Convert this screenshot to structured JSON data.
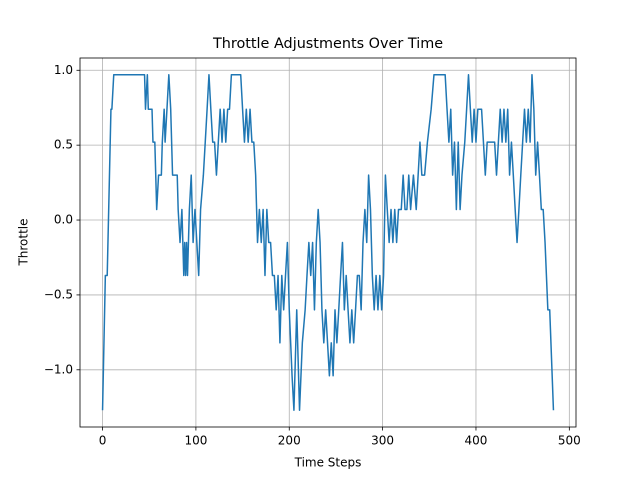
{
  "chart_data": {
    "type": "line",
    "title": "Throttle Adjustments Over Time",
    "xlabel": "Time Steps",
    "ylabel": "Throttle",
    "color": "#1f77b4",
    "grid": true,
    "x": [
      0,
      3,
      5,
      9,
      10,
      12,
      45,
      46,
      48,
      49,
      53,
      54,
      56,
      58,
      60,
      63,
      64,
      66,
      67,
      69,
      71,
      73,
      75,
      80,
      81,
      83,
      85,
      87,
      88,
      89,
      90,
      91,
      93,
      95,
      97,
      99,
      101,
      103,
      105,
      108,
      110,
      112,
      114,
      116,
      118,
      120,
      122,
      124,
      126,
      128,
      130,
      132,
      134,
      136,
      138,
      148,
      150,
      152,
      154,
      156,
      158,
      160,
      162,
      164,
      166,
      168,
      170,
      172,
      174,
      176,
      178,
      180,
      182,
      184,
      186,
      188,
      190,
      192,
      194,
      196,
      198,
      200,
      203,
      205,
      208,
      211,
      214,
      217,
      219,
      221,
      223,
      225,
      227,
      229,
      231,
      233,
      235,
      237,
      239,
      241,
      243,
      245,
      247,
      249,
      251,
      253,
      255,
      257,
      259,
      261,
      263,
      265,
      267,
      269,
      271,
      273,
      275,
      277,
      279,
      281,
      283,
      285,
      287,
      289,
      291,
      293,
      295,
      297,
      299,
      301,
      303,
      305,
      307,
      309,
      311,
      313,
      315,
      317,
      320,
      322,
      324,
      326,
      328,
      330,
      333,
      336,
      340,
      342,
      345,
      348,
      352,
      355,
      367,
      369,
      371,
      373,
      375,
      377,
      379,
      381,
      383,
      385,
      388,
      390,
      392,
      394,
      396,
      398,
      400,
      402,
      406,
      408,
      410,
      412,
      420,
      422,
      424,
      426,
      428,
      430,
      432,
      434,
      436,
      438,
      440,
      442,
      444,
      446,
      448,
      450,
      452,
      454,
      456,
      458,
      460,
      462,
      464,
      466,
      468,
      470,
      472,
      474,
      477,
      479,
      483
    ],
    "values": [
      -1.27,
      -0.37,
      -0.37,
      0.74,
      0.74,
      0.97,
      0.97,
      0.74,
      0.97,
      0.74,
      0.74,
      0.52,
      0.52,
      0.07,
      0.3,
      0.3,
      0.52,
      0.74,
      0.52,
      0.74,
      0.97,
      0.74,
      0.3,
      0.3,
      0.07,
      -0.15,
      0.07,
      -0.37,
      -0.15,
      -0.37,
      -0.15,
      -0.37,
      0.07,
      0.3,
      -0.15,
      0.07,
      -0.15,
      -0.37,
      0.07,
      0.3,
      0.52,
      0.74,
      0.97,
      0.74,
      0.52,
      0.52,
      0.3,
      0.52,
      0.74,
      0.52,
      0.74,
      0.52,
      0.74,
      0.74,
      0.97,
      0.97,
      0.74,
      0.52,
      0.74,
      0.52,
      0.74,
      0.52,
      0.52,
      0.3,
      -0.15,
      0.07,
      -0.15,
      0.07,
      -0.37,
      0.07,
      -0.15,
      -0.15,
      -0.37,
      -0.37,
      -0.6,
      -0.37,
      -0.82,
      -0.37,
      -0.6,
      -0.37,
      -0.15,
      -0.6,
      -1.04,
      -1.27,
      -0.6,
      -1.27,
      -0.82,
      -0.6,
      -0.37,
      -0.15,
      -0.37,
      -0.15,
      -0.6,
      -0.15,
      0.07,
      -0.15,
      -0.6,
      -0.82,
      -0.6,
      -0.82,
      -1.04,
      -0.82,
      -1.04,
      -0.6,
      -0.82,
      -0.6,
      -0.37,
      -0.15,
      -0.6,
      -0.37,
      -0.6,
      -0.82,
      -0.6,
      -0.82,
      -0.6,
      -0.37,
      -0.37,
      -0.6,
      -0.15,
      0.07,
      -0.15,
      0.3,
      0.07,
      -0.37,
      -0.6,
      -0.37,
      -0.6,
      -0.37,
      -0.6,
      -0.37,
      0.3,
      0.07,
      -0.15,
      0.07,
      -0.15,
      0.07,
      -0.15,
      0.07,
      0.07,
      0.3,
      0.07,
      0.07,
      0.3,
      0.07,
      0.3,
      0.07,
      0.52,
      0.3,
      0.3,
      0.52,
      0.74,
      0.97,
      0.97,
      0.74,
      0.52,
      0.74,
      0.3,
      0.52,
      0.07,
      0.52,
      0.07,
      0.3,
      0.52,
      0.74,
      0.97,
      0.74,
      0.52,
      0.74,
      0.52,
      0.74,
      0.74,
      0.52,
      0.3,
      0.52,
      0.52,
      0.3,
      0.52,
      0.74,
      0.52,
      0.74,
      0.52,
      0.74,
      0.3,
      0.52,
      0.3,
      0.07,
      -0.15,
      0.07,
      0.3,
      0.52,
      0.74,
      0.52,
      0.74,
      0.52,
      0.97,
      0.74,
      0.3,
      0.52,
      0.3,
      0.07,
      0.07,
      -0.15,
      -0.6,
      -0.6,
      -1.27
    ],
    "xlim": [
      -24.15,
      507.15
    ],
    "ylim": [
      -1.382,
      1.082
    ],
    "xticks": [
      0,
      100,
      200,
      300,
      400,
      500
    ],
    "yticks": [
      {
        "value": -1.0,
        "label": "−1.0"
      },
      {
        "value": -0.5,
        "label": "−0.5"
      },
      {
        "value": 0.0,
        "label": "0.0"
      },
      {
        "value": 0.5,
        "label": "0.5"
      },
      {
        "value": 1.0,
        "label": "1.0"
      }
    ]
  }
}
